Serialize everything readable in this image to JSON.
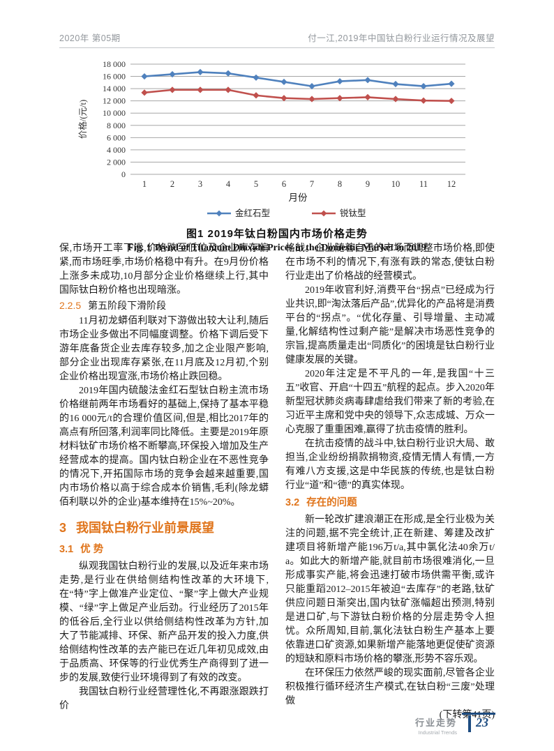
{
  "accent_colors": {
    "heading_orange": "#e0751c",
    "chart_blue": "#4F81BD",
    "chart_red": "#C0504D",
    "footer_navy": "#1c4b80",
    "grid_gray": "#a6a6a6"
  },
  "header": {
    "left": "2020年  第05期",
    "right": "付一江,2019年中国钛白粉行业运行情况及展望"
  },
  "figure": {
    "caption_cn": "图1  2019年钛白粉国内市场价格走势",
    "caption_en": "Fig. 1   Trend of Titanium Dioxide Prices in the Domestic Market in 2019"
  },
  "chart_data": {
    "type": "line",
    "x": [
      1,
      2,
      3,
      4,
      5,
      6,
      7,
      8,
      9,
      10,
      11,
      12
    ],
    "xlabel": "月份",
    "ylabel": "价格/(元/t)",
    "ylim": [
      0,
      18000
    ],
    "ytick_step": 2000,
    "grid": true,
    "legend_position": "bottom",
    "series": [
      {
        "name": "金红石型",
        "color": "#4F81BD",
        "values": [
          16000,
          16350,
          16700,
          16500,
          15800,
          15100,
          14400,
          15200,
          15400,
          14750,
          14400,
          14800
        ]
      },
      {
        "name": "锐钛型",
        "color": "#C0504D",
        "values": [
          13350,
          13800,
          13800,
          13800,
          12900,
          12450,
          12300,
          12450,
          12600,
          12300,
          12050,
          12000
        ]
      }
    ]
  },
  "columns": {
    "left": [
      {
        "type": "p",
        "indent": false,
        "text": "保,市场开工率下滑,价格跌至低位及企业库存偏紧,而市场旺季,市场价格稳中有升。在9月份价格上涨多未成功,10月部分企业价格继续上行,其中国际钛白粉价格也出现暗涨。"
      },
      {
        "type": "h-l3",
        "num": "2.2.5",
        "text": "第五阶段下滑阶段"
      },
      {
        "type": "p",
        "indent": true,
        "text": "11月初龙蟒佰利联对下游做出较大让利,随后市场企业多做出不同幅度调整。价格下调后受下游年底备货企业去库存较多,加之企业限产影响,部分企业出现库存紧张,在11月底及12月初,个别企业价格出现宣涨,市场价格止跌回稳。"
      },
      {
        "type": "p",
        "indent": true,
        "text": "2019年国内硫酸法金红石型钛白粉主流市场价格继前两年市场看好的基础上,保持了基本平稳的16 000元/t的合理价值区间,但是,相比2017年的高点有所回落,利润率同比降低。主要是2019年原材料钛矿市场价格不断攀高,环保投入增加及生产经营成本的提高。国内钛白粉企业在不恶性竞争的情况下,开拓国际市场的竞争会越来越重要,国内市场价格以高于综合成本价销售,毛利(除龙蟒佰利联以外的企业)基本维持在15%~20%。"
      },
      {
        "type": "h-l1",
        "num": "3",
        "text": "我国钛白粉行业前景展望"
      },
      {
        "type": "h-l2",
        "num": "3.1",
        "text": "优  势"
      },
      {
        "type": "p",
        "indent": true,
        "text": "纵观我国钛白粉行业的发展,以及近年来市场走势,是行业在供给侧结构性改革的大环境下,在“特”字上做准产业定位、“聚”字上做大产业规模、“绿”字上做足产业后劲。行业经历了2015年的低谷后,全行业以供给侧结构性改革为方针,加大了节能减排、环保、新产品开发的投入力度,供给侧结构性改革的去产能已在近几年初见成效,由于品质高、环保等的行业优秀生产商得到了进一步的发展,致使行业环境得到了有效的改变。"
      },
      {
        "type": "p",
        "indent": true,
        "text": "我国钛白粉行业经营理性化,不再跟涨跟跌打价"
      }
    ],
    "right": [
      {
        "type": "p",
        "indent": false,
        "text": "格战。企业随着自己的市场而调整市场价格,即使在市场不利的情况下,有涨有跌的常态,使钛白粉行业走出了价格战的经营模式。"
      },
      {
        "type": "p",
        "indent": true,
        "text": "2019年收官利好,消费平台“拐点”已经成为行业共识,即“淘汰落后产品”,优异化的产品将是消费平台的“拐点”。“优化存量、引导增量、主动减量,化解结构性过剩产能”是解决市场恶性竞争的宗旨,提高质量走出“同质化”的困境是钛白粉行业健康发展的关键。"
      },
      {
        "type": "p",
        "indent": true,
        "text": "2020年注定是不平凡的一年,是我国“十三五”收官、开启“十四五”航程的起点。步入2020年新型冠状肺炎病毒肆虐给我们带来了新的考验,在习近平主席和党中央的领导下,众志成城、万众一心克服了重重困难,赢得了抗击疫情的胜利。"
      },
      {
        "type": "p",
        "indent": true,
        "text": "在抗击疫情的战斗中,钛白粉行业识大局、敢担当,企业纷纷捐款捐物资,疫情无情人有情,一方有难八方支援,这是中华民族的传统,也是钛白粉行业“道”和“德”的真实体现。"
      },
      {
        "type": "h-l2",
        "num": "3.2",
        "text": "存在的问题"
      },
      {
        "type": "p",
        "indent": true,
        "text": "新一轮改扩建浪潮正在形成,是全行业极为关注的问题,据不完全统计,正在新建、筹建及改扩建项目将新增产能196万t/a,其中氯化法40余万t/a。如此大的新增产能,就目前市场很难消化,一旦形成事实产能,将会迅速打破市场供需平衡,或许只能重蹈2012–2015年被迫“去库存”的老路,钛矿供应问题日渐突出,国内钛矿涨幅超出预测,特别是进口矿,与下游钛白粉价格的分层走势令人担忧。众所周知,目前,氯化法钛白粉生产基本上要依靠进口矿资源,如果新增产能落地更促使矿资源的短缺和原料市场价格的攀涨,形势不容乐观。"
      },
      {
        "type": "p",
        "indent": true,
        "text": "在环保压力依然严峻的现实面前,尽管各企业积极推行循环经济生产模式,在钛白粉“三废”处理做"
      },
      {
        "type": "p",
        "indent": false,
        "align": "right",
        "text": "(下转第41页)"
      }
    ]
  },
  "footer": {
    "section_cn": "行业走势",
    "section_en": "Industrial Trends",
    "page_number": "23"
  }
}
